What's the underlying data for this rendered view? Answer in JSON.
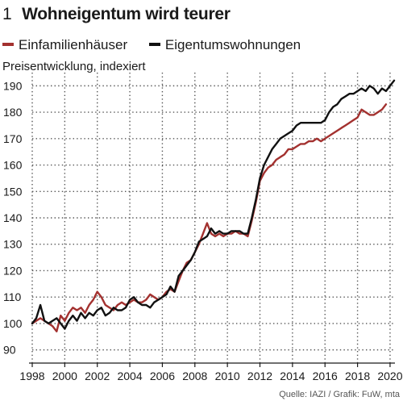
{
  "header": {
    "number": "1",
    "title": "Wohneigentum wird teurer"
  },
  "legend": [
    {
      "label": "Einfamilienhäuser",
      "color": "#a3312f"
    },
    {
      "label": "Eigentumswohnungen",
      "color": "#111111"
    }
  ],
  "ylabel": "Preisentwicklung, indexiert",
  "source": "Quelle: IAZI / Grafik: FuW, mta",
  "colors": {
    "series_ef": "#a3312f",
    "series_ew": "#111111",
    "grid": "#555555"
  },
  "chart_data": {
    "type": "line",
    "title": "Wohneigentum wird teurer",
    "ylabel": "Preisentwicklung, indexiert",
    "xlim": [
      1998,
      2020.3
    ],
    "ylim": [
      85,
      195
    ],
    "xticks": [
      1998,
      2000,
      2002,
      2004,
      2006,
      2008,
      2010,
      2012,
      2014,
      2016,
      2018,
      2020
    ],
    "yticks": [
      90,
      100,
      110,
      120,
      130,
      140,
      150,
      160,
      170,
      180,
      190
    ],
    "grid": true,
    "legend_position": "top",
    "series": [
      {
        "name": "Einfamilienhäuser",
        "points": [
          [
            1998.0,
            100
          ],
          [
            1998.25,
            101
          ],
          [
            1998.5,
            102
          ],
          [
            1998.75,
            101
          ],
          [
            1999.0,
            100
          ],
          [
            1999.25,
            99
          ],
          [
            1999.5,
            97
          ],
          [
            1999.75,
            103
          ],
          [
            2000.0,
            101
          ],
          [
            2000.25,
            104
          ],
          [
            2000.5,
            106
          ],
          [
            2000.75,
            105
          ],
          [
            2001.0,
            106
          ],
          [
            2001.25,
            104
          ],
          [
            2001.5,
            107
          ],
          [
            2001.75,
            109
          ],
          [
            2002.0,
            112
          ],
          [
            2002.25,
            110
          ],
          [
            2002.5,
            107
          ],
          [
            2002.75,
            106
          ],
          [
            2003.0,
            105
          ],
          [
            2003.25,
            107
          ],
          [
            2003.5,
            108
          ],
          [
            2003.75,
            107
          ],
          [
            2004.0,
            108
          ],
          [
            2004.25,
            109
          ],
          [
            2004.5,
            108
          ],
          [
            2004.75,
            108
          ],
          [
            2005.0,
            109
          ],
          [
            2005.25,
            111
          ],
          [
            2005.5,
            110
          ],
          [
            2005.75,
            109
          ],
          [
            2006.0,
            110
          ],
          [
            2006.25,
            112
          ],
          [
            2006.5,
            113
          ],
          [
            2006.75,
            112
          ],
          [
            2007.0,
            116
          ],
          [
            2007.25,
            120
          ],
          [
            2007.5,
            123
          ],
          [
            2007.75,
            124
          ],
          [
            2008.0,
            127
          ],
          [
            2008.25,
            130
          ],
          [
            2008.5,
            134
          ],
          [
            2008.75,
            138
          ],
          [
            2009.0,
            134
          ],
          [
            2009.25,
            133
          ],
          [
            2009.5,
            134
          ],
          [
            2009.75,
            133
          ],
          [
            2010.0,
            134
          ],
          [
            2010.25,
            134
          ],
          [
            2010.5,
            135
          ],
          [
            2010.75,
            134
          ],
          [
            2011.0,
            134
          ],
          [
            2011.25,
            133
          ],
          [
            2011.5,
            139
          ],
          [
            2011.75,
            146
          ],
          [
            2012.0,
            154
          ],
          [
            2012.25,
            157
          ],
          [
            2012.5,
            159
          ],
          [
            2012.75,
            160
          ],
          [
            2013.0,
            162
          ],
          [
            2013.25,
            163
          ],
          [
            2013.5,
            164
          ],
          [
            2013.75,
            166
          ],
          [
            2014.0,
            166
          ],
          [
            2014.25,
            167
          ],
          [
            2014.5,
            168
          ],
          [
            2014.75,
            168
          ],
          [
            2015.0,
            169
          ],
          [
            2015.25,
            169
          ],
          [
            2015.5,
            170
          ],
          [
            2015.75,
            169
          ],
          [
            2016.0,
            170
          ],
          [
            2016.25,
            171
          ],
          [
            2016.5,
            172
          ],
          [
            2016.75,
            173
          ],
          [
            2017.0,
            174
          ],
          [
            2017.25,
            175
          ],
          [
            2017.5,
            176
          ],
          [
            2017.75,
            177
          ],
          [
            2018.0,
            178
          ],
          [
            2018.25,
            181
          ],
          [
            2018.5,
            180
          ],
          [
            2018.75,
            179
          ],
          [
            2019.0,
            179
          ],
          [
            2019.25,
            180
          ],
          [
            2019.5,
            181
          ],
          [
            2019.75,
            183
          ]
        ]
      },
      {
        "name": "Eigentumswohnungen",
        "points": [
          [
            1998.0,
            100
          ],
          [
            1998.25,
            102
          ],
          [
            1998.5,
            107
          ],
          [
            1998.75,
            101
          ],
          [
            1999.0,
            100
          ],
          [
            1999.25,
            101
          ],
          [
            1999.5,
            102
          ],
          [
            1999.75,
            100
          ],
          [
            2000.0,
            98
          ],
          [
            2000.25,
            101
          ],
          [
            2000.5,
            103
          ],
          [
            2000.75,
            101
          ],
          [
            2001.0,
            104
          ],
          [
            2001.25,
            102
          ],
          [
            2001.5,
            104
          ],
          [
            2001.75,
            103
          ],
          [
            2002.0,
            105
          ],
          [
            2002.25,
            106
          ],
          [
            2002.5,
            103
          ],
          [
            2002.75,
            104
          ],
          [
            2003.0,
            106
          ],
          [
            2003.25,
            105
          ],
          [
            2003.5,
            105
          ],
          [
            2003.75,
            106
          ],
          [
            2004.0,
            109
          ],
          [
            2004.25,
            110
          ],
          [
            2004.5,
            108
          ],
          [
            2004.75,
            107
          ],
          [
            2005.0,
            107
          ],
          [
            2005.25,
            106
          ],
          [
            2005.5,
            108
          ],
          [
            2005.75,
            109
          ],
          [
            2006.0,
            110
          ],
          [
            2006.25,
            111
          ],
          [
            2006.5,
            114
          ],
          [
            2006.75,
            112
          ],
          [
            2007.0,
            118
          ],
          [
            2007.25,
            120
          ],
          [
            2007.5,
            122
          ],
          [
            2007.75,
            124
          ],
          [
            2008.0,
            127
          ],
          [
            2008.25,
            131
          ],
          [
            2008.5,
            132
          ],
          [
            2008.75,
            133
          ],
          [
            2009.0,
            136
          ],
          [
            2009.25,
            134
          ],
          [
            2009.5,
            135
          ],
          [
            2009.75,
            134
          ],
          [
            2010.0,
            134
          ],
          [
            2010.25,
            135
          ],
          [
            2010.5,
            135
          ],
          [
            2010.75,
            135
          ],
          [
            2011.0,
            134
          ],
          [
            2011.25,
            134
          ],
          [
            2011.5,
            140
          ],
          [
            2011.75,
            147
          ],
          [
            2012.0,
            155
          ],
          [
            2012.25,
            160
          ],
          [
            2012.5,
            163
          ],
          [
            2012.75,
            166
          ],
          [
            2013.0,
            168
          ],
          [
            2013.25,
            170
          ],
          [
            2013.5,
            171
          ],
          [
            2013.75,
            172
          ],
          [
            2014.0,
            173
          ],
          [
            2014.25,
            175
          ],
          [
            2014.5,
            176
          ],
          [
            2014.75,
            176
          ],
          [
            2015.0,
            176
          ],
          [
            2015.25,
            176
          ],
          [
            2015.5,
            176
          ],
          [
            2015.75,
            176
          ],
          [
            2016.0,
            177
          ],
          [
            2016.25,
            180
          ],
          [
            2016.5,
            182
          ],
          [
            2016.75,
            183
          ],
          [
            2017.0,
            185
          ],
          [
            2017.25,
            186
          ],
          [
            2017.5,
            187
          ],
          [
            2017.75,
            187
          ],
          [
            2018.0,
            188
          ],
          [
            2018.25,
            189
          ],
          [
            2018.5,
            188
          ],
          [
            2018.75,
            190
          ],
          [
            2019.0,
            189
          ],
          [
            2019.25,
            187
          ],
          [
            2019.5,
            189
          ],
          [
            2019.75,
            188
          ],
          [
            2020.0,
            190
          ],
          [
            2020.25,
            192
          ]
        ]
      }
    ]
  }
}
